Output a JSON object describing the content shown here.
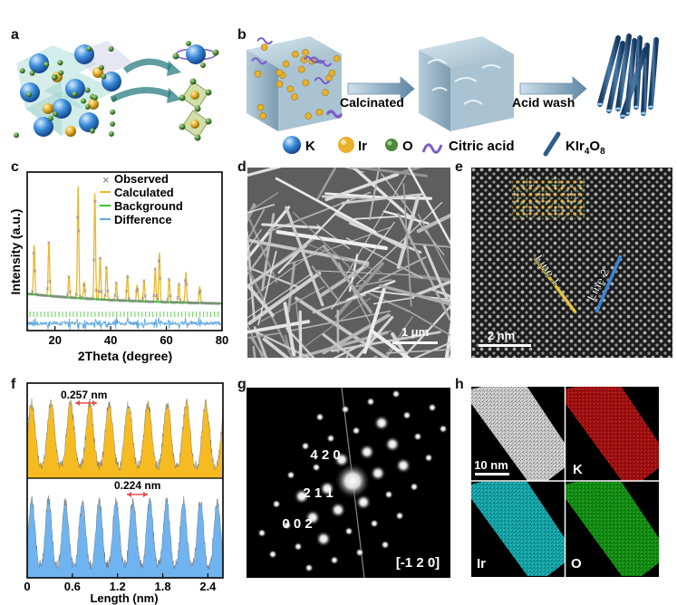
{
  "panels": {
    "a": {
      "label": "a"
    },
    "b": {
      "label": "b",
      "step1": "Calcinated",
      "step2": "Acid wash",
      "legend": [
        {
          "name": "K",
          "color": "#3c8fdc",
          "icon": "k-sphere-icon"
        },
        {
          "name": "Ir",
          "color": "#e9b12c",
          "icon": "ir-sphere-icon"
        },
        {
          "name": "O",
          "color": "#4c8a3a",
          "icon": "o-sphere-icon"
        },
        {
          "name": "Citric acid",
          "color": "#7a5cc8",
          "icon": "citric-acid-wave-icon"
        }
      ],
      "legend_kir": {
        "base": "KIr",
        "sub1": "4",
        "mid": "O",
        "sub2": "8",
        "color": "#2d5c86",
        "icon": "nanorod-icon"
      }
    },
    "c": {
      "label": "c",
      "legend": [
        {
          "name": "Observed",
          "color": "#777777",
          "marker": "×"
        },
        {
          "name": "Calculated",
          "color": "#e8b830"
        },
        {
          "name": "Background",
          "color": "#39c02a"
        },
        {
          "name": "Difference",
          "color": "#60a9e0"
        }
      ]
    },
    "d": {
      "label": "d",
      "scale": "1 μm"
    },
    "e": {
      "label": "e",
      "scale": "2 nm",
      "line1": "Line 1",
      "line2": "Line 2",
      "line1_color": "#e5c23c",
      "line2_color": "#3a86d8"
    },
    "f": {
      "label": "f",
      "top_spacing": "0.257 nm",
      "bottom_spacing": "0.224 nm",
      "top_color": "#f7bb22",
      "bottom_color": "#6fb4f0"
    },
    "g": {
      "label": "g",
      "spots": [
        "4 2 0",
        "2 1 1",
        "0 0 2"
      ],
      "zone": "[-1 2 0]"
    },
    "h": {
      "label": "h",
      "scale": "10 nm",
      "maps": [
        {
          "name": "",
          "color": "#d8d8d8"
        },
        {
          "name": "K",
          "color": "#d21414"
        },
        {
          "name": "Ir",
          "color": "#18d4d8"
        },
        {
          "name": "O",
          "color": "#17b817"
        }
      ]
    }
  },
  "chart_data": [
    {
      "type": "line",
      "panel": "c",
      "xlabel": "2Theta (degree)",
      "ylabel": "Intensity (a.u.)",
      "xlim": [
        10,
        80
      ],
      "xticks": [
        20,
        40,
        60,
        80
      ],
      "series": [
        {
          "name": "Calculated",
          "peaks": [
            [
              12.5,
              0.42
            ],
            [
              17.8,
              0.46
            ],
            [
              25.0,
              0.18
            ],
            [
              28.3,
              0.95
            ],
            [
              30.5,
              0.14
            ],
            [
              34.3,
              0.9
            ],
            [
              36.2,
              0.35
            ],
            [
              38.5,
              0.28
            ],
            [
              42.0,
              0.15
            ],
            [
              46.0,
              0.22
            ],
            [
              49.5,
              0.14
            ],
            [
              52.0,
              0.18
            ],
            [
              56.0,
              0.28
            ],
            [
              57.5,
              0.42
            ],
            [
              61.0,
              0.2
            ],
            [
              64.5,
              0.16
            ],
            [
              67.0,
              0.26
            ],
            [
              72.0,
              0.14
            ]
          ]
        },
        {
          "name": "Background",
          "level": 0.1
        }
      ]
    },
    {
      "type": "area",
      "panel": "f",
      "xlabel": "Length (nm)",
      "xlim": [
        0,
        2.6
      ],
      "xticks": [
        0,
        0.6,
        1.2,
        1.8,
        2.4
      ],
      "series": [
        {
          "name": "Line 1",
          "period": 0.257
        },
        {
          "name": "Line 2",
          "period": 0.224
        }
      ]
    }
  ]
}
